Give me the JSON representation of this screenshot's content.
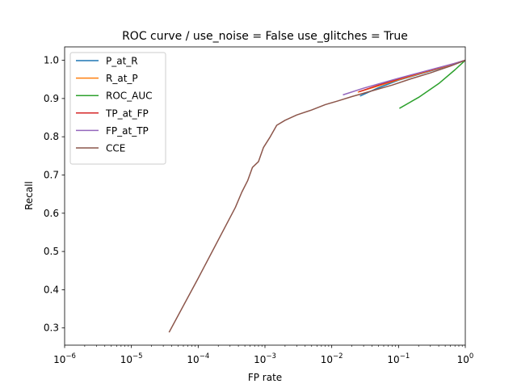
{
  "chart_data": {
    "type": "line",
    "title": "ROC curve / use_noise = False  use_glitches = True",
    "xlabel": "FP rate",
    "ylabel": "Recall",
    "xscale": "log",
    "xlim": [
      1e-06,
      1
    ],
    "ylim": [
      0.255,
      1.035
    ],
    "grid": false,
    "legend_position": "top-left",
    "x_ticks": [
      {
        "value": 1e-06,
        "base": "10",
        "exp": "−6"
      },
      {
        "value": 1e-05,
        "base": "10",
        "exp": "−5"
      },
      {
        "value": 0.0001,
        "base": "10",
        "exp": "−4"
      },
      {
        "value": 0.001,
        "base": "10",
        "exp": "−3"
      },
      {
        "value": 0.01,
        "base": "10",
        "exp": "−2"
      },
      {
        "value": 0.1,
        "base": "10",
        "exp": "−1"
      },
      {
        "value": 1,
        "base": "10",
        "exp": "0"
      }
    ],
    "y_ticks": [
      {
        "value": 0.3,
        "label": "0.3"
      },
      {
        "value": 0.4,
        "label": "0.4"
      },
      {
        "value": 0.5,
        "label": "0.5"
      },
      {
        "value": 0.6,
        "label": "0.6"
      },
      {
        "value": 0.7,
        "label": "0.7"
      },
      {
        "value": 0.8,
        "label": "0.8"
      },
      {
        "value": 0.9,
        "label": "0.9"
      },
      {
        "value": 1.0,
        "label": "1.0"
      }
    ],
    "series": [
      {
        "name": "P_at_R",
        "color": "#1f77b4",
        "x": [
          0.027,
          0.05,
          0.1,
          0.2,
          0.4,
          0.7,
          1.0
        ],
        "y": [
          0.907,
          0.928,
          0.948,
          0.963,
          0.978,
          0.991,
          1.0
        ]
      },
      {
        "name": "R_at_P",
        "color": "#ff7f0e",
        "x": [
          0.025,
          0.05,
          0.1,
          0.2,
          0.4,
          0.7,
          1.0
        ],
        "y": [
          0.917,
          0.933,
          0.949,
          0.964,
          0.979,
          0.991,
          1.0
        ]
      },
      {
        "name": "ROC_AUC",
        "color": "#2ca02c",
        "x": [
          0.105,
          0.2,
          0.4,
          0.7,
          1.0
        ],
        "y": [
          0.875,
          0.903,
          0.939,
          0.975,
          1.0
        ]
      },
      {
        "name": "TP_at_FP",
        "color": "#d62728",
        "x": [
          0.026,
          0.05,
          0.1,
          0.2,
          0.4,
          0.7,
          1.0
        ],
        "y": [
          0.918,
          0.935,
          0.951,
          0.966,
          0.98,
          0.992,
          1.0
        ]
      },
      {
        "name": "FP_at_TP",
        "color": "#9467bd",
        "x": [
          0.015,
          0.03,
          0.06,
          0.1,
          0.2,
          0.4,
          0.7,
          1.0
        ],
        "y": [
          0.91,
          0.927,
          0.942,
          0.953,
          0.967,
          0.981,
          0.992,
          1.0
        ]
      },
      {
        "name": "CCE",
        "color": "#8c564b",
        "x": [
          3.7e-05,
          0.0001,
          0.00036,
          0.00045,
          0.00055,
          0.00065,
          0.0008,
          0.00095,
          0.0012,
          0.0015,
          0.002,
          0.003,
          0.005,
          0.008,
          0.012,
          0.02,
          0.04,
          0.08,
          0.15,
          0.3,
          0.6,
          1.0
        ],
        "y": [
          0.29,
          0.43,
          0.615,
          0.655,
          0.685,
          0.72,
          0.735,
          0.772,
          0.8,
          0.83,
          0.843,
          0.857,
          0.87,
          0.884,
          0.893,
          0.905,
          0.92,
          0.935,
          0.951,
          0.967,
          0.985,
          1.0
        ]
      }
    ]
  }
}
